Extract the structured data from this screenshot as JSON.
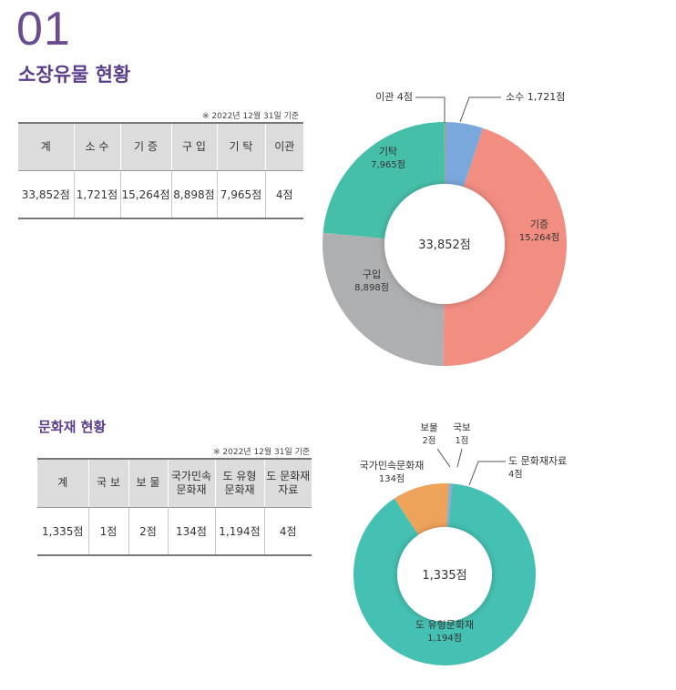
{
  "section_number": "01",
  "collection": {
    "title": "소장유물 현황",
    "note": "※ 2022년 12월 31일 기준",
    "headers": [
      "계",
      "소 수",
      "기 증",
      "구 입",
      "기 탁",
      "이관"
    ],
    "values": [
      "33,852점",
      "1,721점",
      "15,264점",
      "8,898점",
      "7,965점",
      "4점"
    ]
  },
  "heritage": {
    "title": "문화재 현황",
    "note": "※ 2022년 12월 31일 기준",
    "headers": [
      "계",
      "국 보",
      "보 물",
      "국가민속\n문화재",
      "도 유형\n문화재",
      "도 문화재\n자료"
    ],
    "values": [
      "1,335점",
      "1점",
      "2점",
      "134점",
      "1,194점",
      "4점"
    ]
  },
  "chart_data": [
    {
      "type": "pie",
      "center_label": "33,852점",
      "slices": [
        {
          "name": "소수",
          "value": 1721,
          "label": "1,721점",
          "color": "#7aa8dc"
        },
        {
          "name": "기증",
          "value": 15264,
          "label": "15,264점",
          "color": "#f28d82"
        },
        {
          "name": "구입",
          "value": 8898,
          "label": "8,898점",
          "color": "#adafb1"
        },
        {
          "name": "기탁",
          "value": 7965,
          "label": "7,965점",
          "color": "#46bfa9"
        },
        {
          "name": "이관",
          "value": 4,
          "label": "4점",
          "color": "#c9a227"
        }
      ]
    },
    {
      "type": "pie",
      "center_label": "1,335점",
      "slices": [
        {
          "name": "국보",
          "value": 1,
          "label": "1점",
          "color": "#5b3f8c"
        },
        {
          "name": "도 문화재자료",
          "value": 4,
          "label": "4점",
          "color": "#c6b128"
        },
        {
          "name": "도 유형문화재",
          "value": 1194,
          "label": "1,194점",
          "color": "#45c1b3"
        },
        {
          "name": "국가민속문화재",
          "value": 134,
          "label": "134점",
          "color": "#eea35a"
        },
        {
          "name": "보물",
          "value": 2,
          "label": "2점",
          "color": "#8aaed8"
        }
      ]
    }
  ]
}
